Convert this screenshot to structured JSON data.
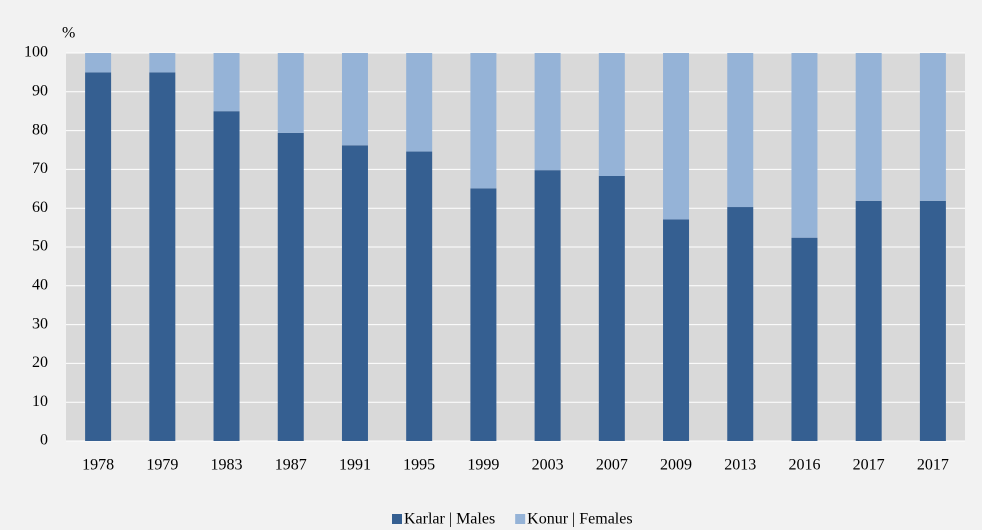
{
  "chart_data": {
    "type": "stacked_bar",
    "ylabel": "%",
    "categories": [
      "1978",
      "1979",
      "1983",
      "1987",
      "1991",
      "1995",
      "1999",
      "2003",
      "2007",
      "2009",
      "2013",
      "2016",
      "2017",
      "2017"
    ],
    "series": [
      {
        "name": "Karlar | Males",
        "color": "#355f91",
        "values": [
          95,
          95,
          85,
          79.4,
          76.2,
          74.6,
          65.1,
          69.8,
          68.3,
          57.1,
          60.3,
          52.4,
          61.9,
          61.9
        ]
      },
      {
        "name": "Konur | Females",
        "color": "#95b3d7",
        "values": [
          5,
          5,
          15,
          20.6,
          23.8,
          25.4,
          34.9,
          30.2,
          31.7,
          42.9,
          39.7,
          47.6,
          38.1,
          38.1
        ]
      }
    ],
    "ylim": [
      0,
      100
    ],
    "yticks": [
      0,
      10,
      20,
      30,
      40,
      50,
      60,
      70,
      80,
      90,
      100
    ],
    "grid": true,
    "legend": "bottom"
  }
}
